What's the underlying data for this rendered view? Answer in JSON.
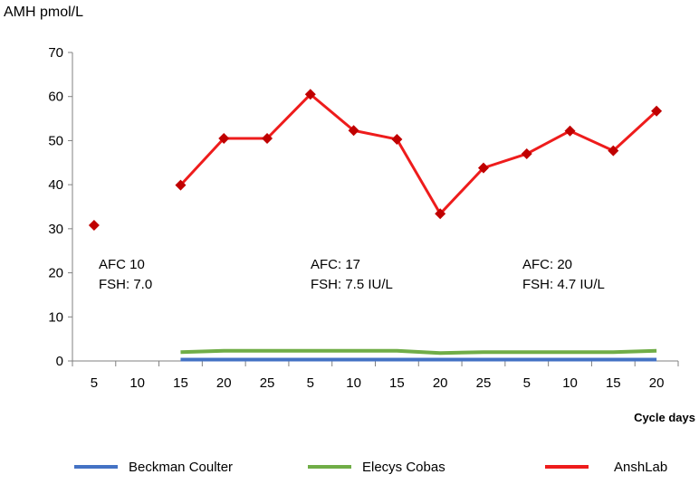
{
  "chart_data": {
    "type": "line",
    "ylabel": "AMH pmol/L",
    "xlabel": "Cycle days",
    "ylim": [
      0,
      70
    ],
    "yticks": [
      0,
      10,
      20,
      30,
      40,
      50,
      60,
      70
    ],
    "categories": [
      "5",
      "10",
      "15",
      "20",
      "25",
      "5",
      "10",
      "15",
      "20",
      "25",
      "5",
      "10",
      "15",
      "20"
    ],
    "grid": false,
    "legend_position": "bottom",
    "series": [
      {
        "name": "Beckman Coulter",
        "color": "#4472c4",
        "marker": "none",
        "values": [
          null,
          null,
          0.3,
          0.3,
          0.3,
          0.3,
          0.3,
          0.3,
          0.3,
          0.3,
          0.3,
          0.3,
          0.3,
          0.3
        ]
      },
      {
        "name": "Elecys Cobas",
        "color": "#70ad47",
        "marker": "none",
        "values": [
          null,
          null,
          2.0,
          2.3,
          2.3,
          2.3,
          2.3,
          2.3,
          1.8,
          2.0,
          2.0,
          2.0,
          2.0,
          2.3
        ]
      },
      {
        "name": "AnshLab",
        "color": "#ee1c1c",
        "marker": "diamond",
        "marker_color": "#c00000",
        "values": [
          30.8,
          null,
          39.9,
          50.5,
          50.5,
          60.5,
          52.3,
          50.3,
          33.4,
          43.8,
          47.0,
          52.2,
          47.7,
          56.7
        ]
      }
    ],
    "annotations": [
      {
        "lines": [
          "AFC 10",
          "FSH: 7.0"
        ]
      },
      {
        "lines": [
          "AFC: 17",
          "FSH: 7.5 IU/L"
        ]
      },
      {
        "lines": [
          "AFC: 20",
          "FSH: 4.7 IU/L"
        ]
      }
    ]
  }
}
